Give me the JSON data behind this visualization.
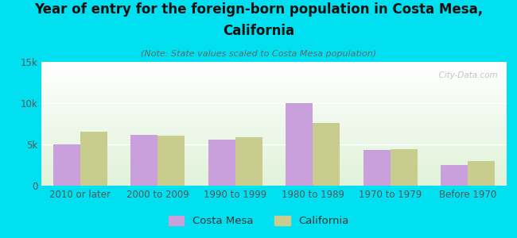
{
  "title_line1": "Year of entry for the foreign-born population in Costa Mesa,",
  "title_line2": "California",
  "subtitle": "(Note: State values scaled to Costa Mesa population)",
  "categories": [
    "2010 or later",
    "2000 to 2009",
    "1990 to 1999",
    "1980 to 1989",
    "1970 to 1979",
    "Before 1970"
  ],
  "costa_mesa": [
    5000,
    6200,
    5600,
    10000,
    4300,
    2500
  ],
  "california": [
    6500,
    6100,
    5900,
    7600,
    4400,
    3000
  ],
  "costa_mesa_color": "#c9a0dc",
  "california_color": "#c8cc8c",
  "background_outer": "#00e0f0",
  "ylim": [
    0,
    15000
  ],
  "yticks": [
    0,
    5000,
    10000,
    15000
  ],
  "ytick_labels": [
    "0",
    "5k",
    "10k",
    "15k"
  ],
  "bar_width": 0.35,
  "legend_labels": [
    "Costa Mesa",
    "California"
  ],
  "watermark": "  City-Data.com",
  "title_fontsize": 12,
  "subtitle_fontsize": 8,
  "tick_fontsize": 8.5,
  "legend_fontsize": 9.5
}
